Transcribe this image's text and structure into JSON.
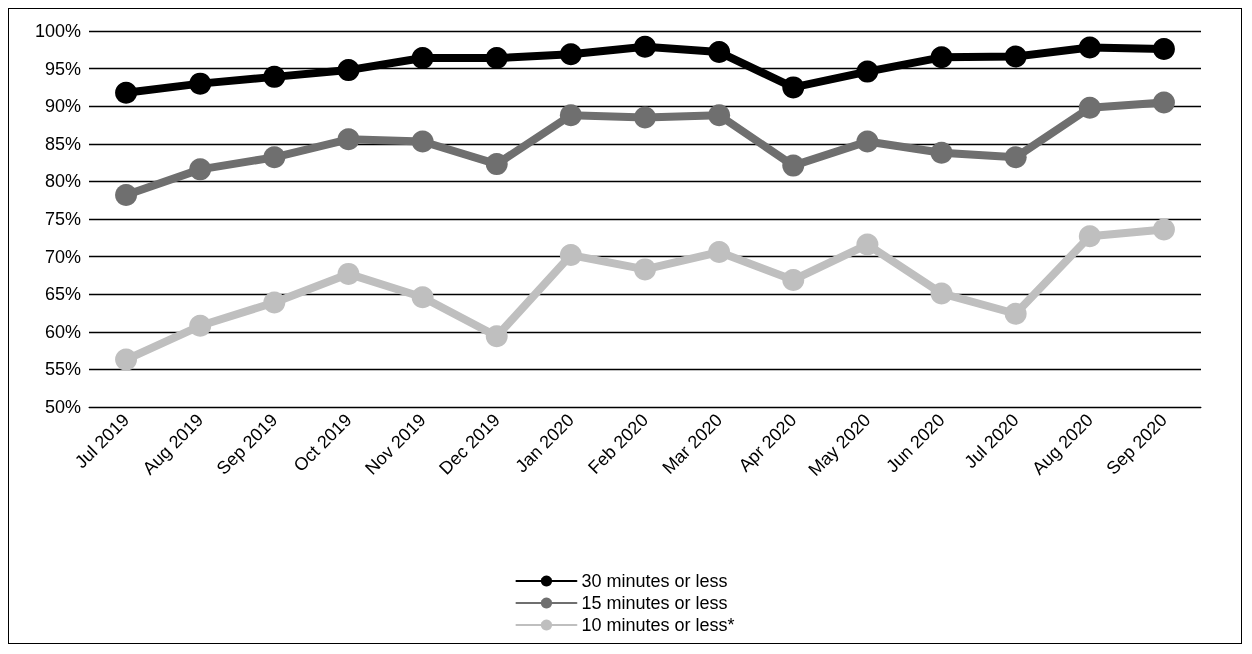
{
  "chart_data": {
    "type": "line",
    "categories": [
      "Jul 2019",
      "Aug 2019",
      "Sep 2019",
      "Oct 2019",
      "Nov 2019",
      "Dec 2019",
      "Jan 2020",
      "Feb 2020",
      "Mar 2020",
      "Apr 2020",
      "May 2020",
      "Jun 2020",
      "Jul 2020",
      "Aug 2020",
      "Sep 2020"
    ],
    "series": [
      {
        "name": "30 minutes or less",
        "color": "#000000",
        "values": [
          91.8,
          93.0,
          93.9,
          94.8,
          96.4,
          96.4,
          96.9,
          97.9,
          97.2,
          92.5,
          94.6,
          96.5,
          96.6,
          97.8,
          97.6
        ]
      },
      {
        "name": "15 minutes or less",
        "color": "#6f6f6f",
        "values": [
          78.2,
          81.6,
          83.2,
          85.6,
          85.3,
          82.3,
          88.8,
          88.5,
          88.8,
          82.1,
          85.3,
          83.8,
          83.2,
          89.8,
          90.5
        ]
      },
      {
        "name": "10 minutes or less*",
        "color": "#bfbfbf",
        "values": [
          56.3,
          60.8,
          63.9,
          67.7,
          64.6,
          59.4,
          70.2,
          68.3,
          70.6,
          66.9,
          71.6,
          65.1,
          62.4,
          72.7,
          73.6
        ]
      }
    ],
    "ylim": [
      50,
      100
    ],
    "yticks": [
      {
        "value": 50,
        "label": "50%"
      },
      {
        "value": 55,
        "label": "55%"
      },
      {
        "value": 60,
        "label": "60%"
      },
      {
        "value": 65,
        "label": "65%"
      },
      {
        "value": 70,
        "label": "70%"
      },
      {
        "value": 75,
        "label": "75%"
      },
      {
        "value": 80,
        "label": "80%"
      },
      {
        "value": 85,
        "label": "85%"
      },
      {
        "value": 90,
        "label": "90%"
      },
      {
        "value": 95,
        "label": "95%"
      },
      {
        "value": 100,
        "label": "100%"
      }
    ],
    "grid": "y",
    "legend": "bottom",
    "marker": "circle",
    "line_style": "solid"
  }
}
